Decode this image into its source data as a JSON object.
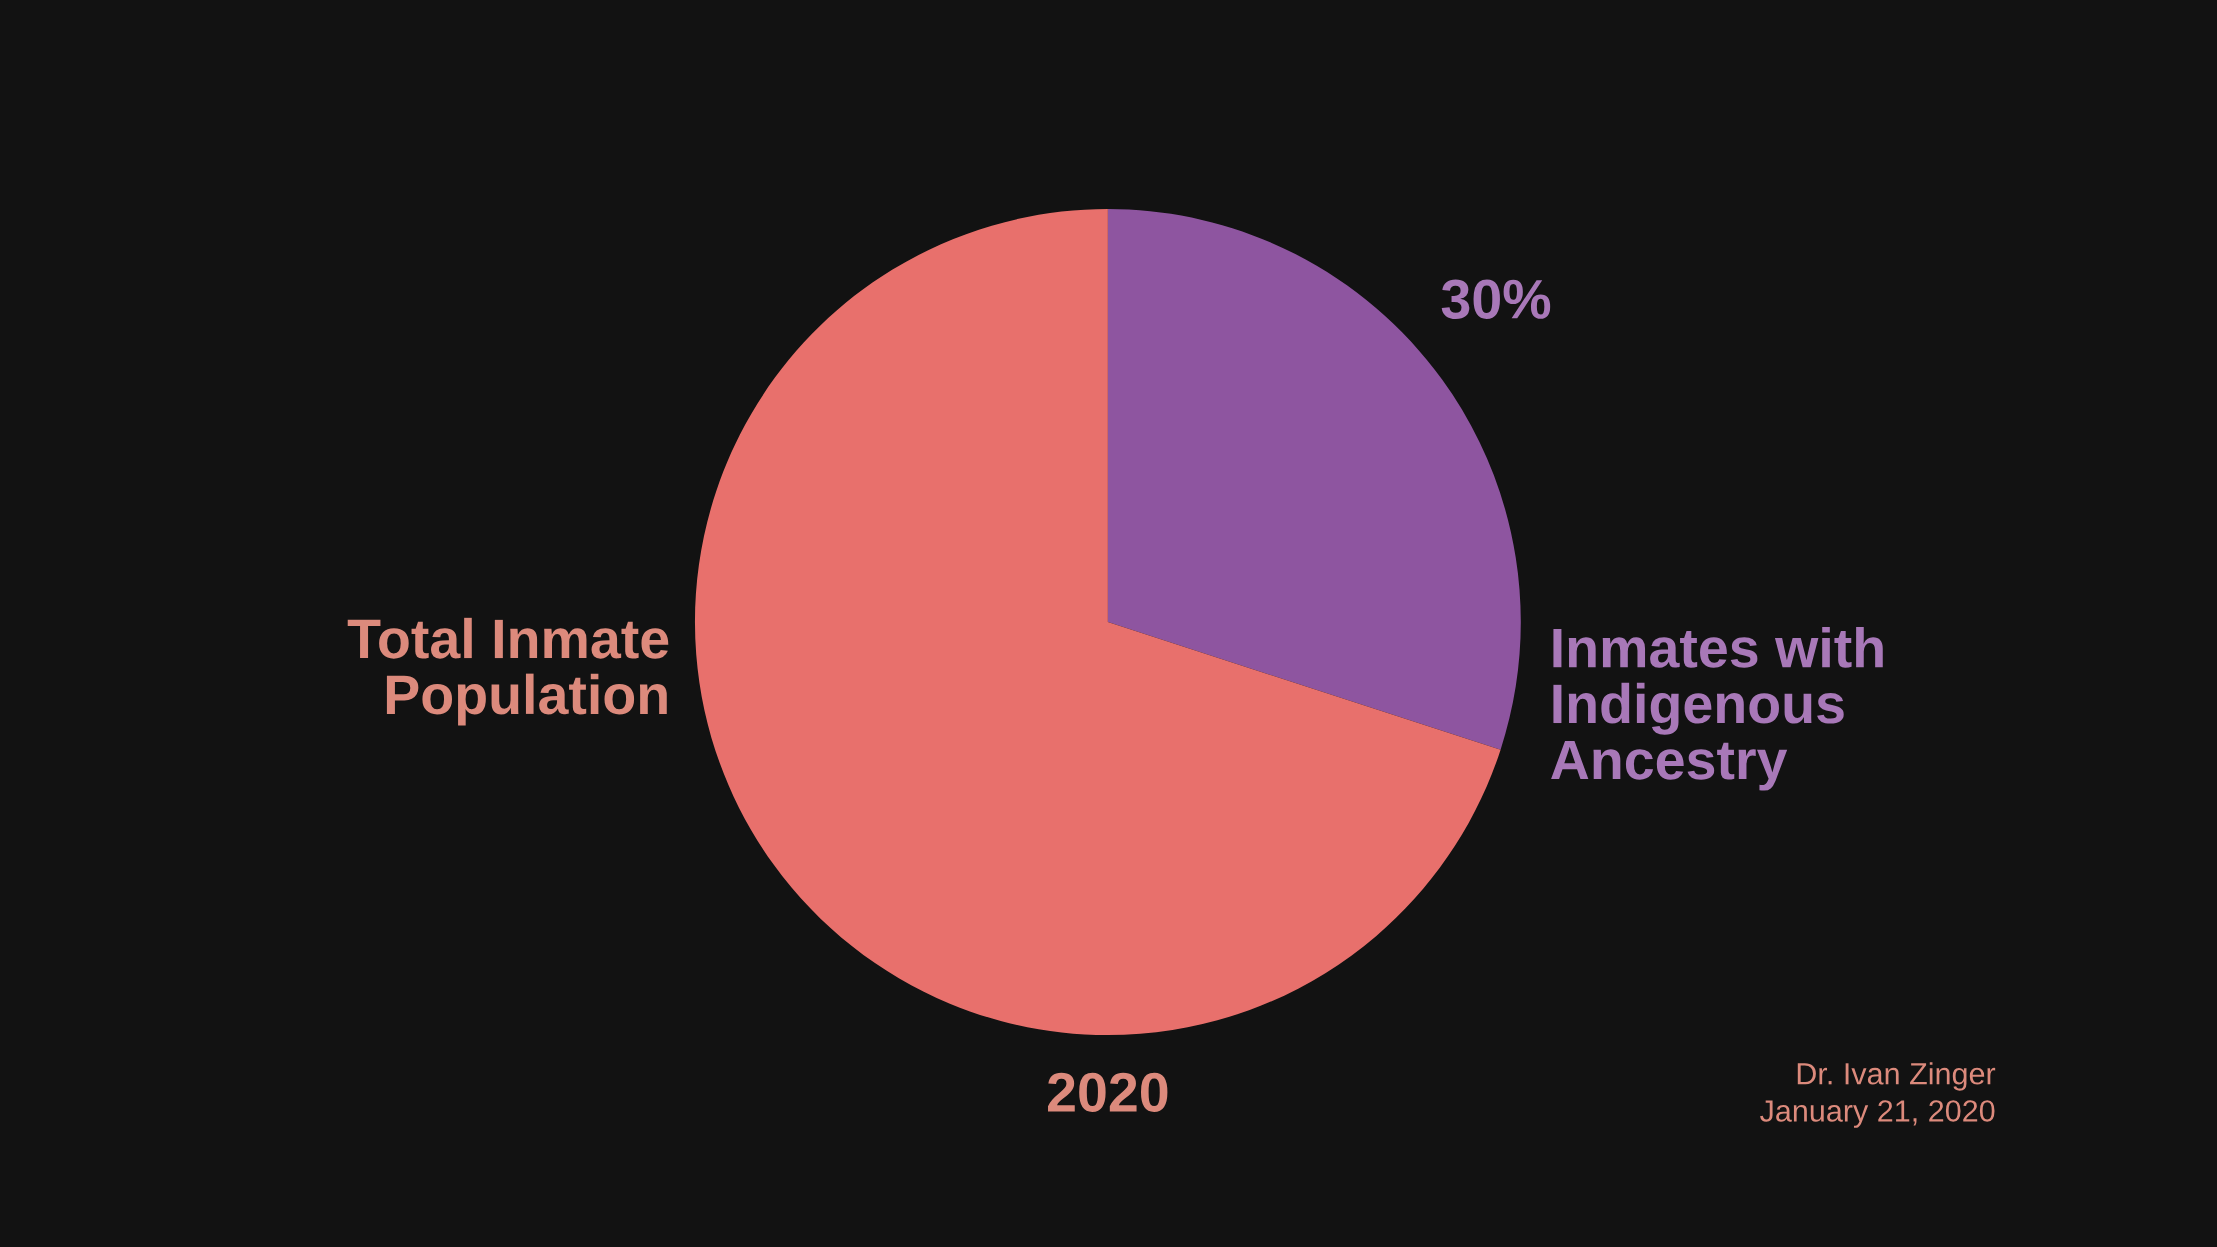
{
  "chart_data": {
    "type": "pie",
    "title": "2020",
    "categories": [
      "Inmates with\nIndigenous\nAncestry",
      "Total Inmate\nPopulation"
    ],
    "values": [
      30,
      70
    ],
    "colors": [
      "#8e55a0",
      "#e8706c"
    ],
    "value_labels": [
      "30%",
      null
    ],
    "legend": false,
    "annotations": [
      "Dr. Ivan Zinger",
      "January 21, 2020"
    ]
  }
}
